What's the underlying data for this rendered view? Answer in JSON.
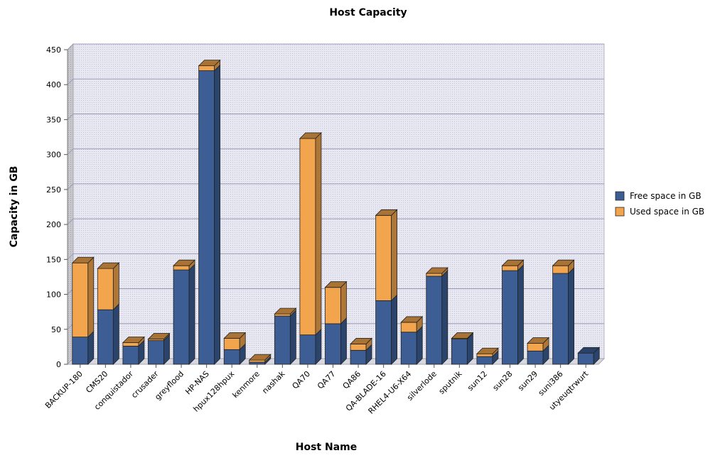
{
  "chart_data": {
    "type": "bar",
    "stacked": true,
    "three_d": true,
    "title": "Host Capacity",
    "xlabel": "Host Name",
    "ylabel": "Capacity in GB",
    "ylim": [
      0,
      450
    ],
    "yticks": [
      0,
      50,
      100,
      150,
      200,
      250,
      300,
      350,
      400,
      450
    ],
    "grid": true,
    "legend_position": "right",
    "categories": [
      "BACKUP-180",
      "CMS20",
      "conquistador",
      "crusader",
      "greyflood",
      "HP-NAS",
      "hpux128hpux",
      "kenmore",
      "nashak",
      "QA70",
      "QA77",
      "QA86",
      "QA-BLADE-16",
      "RHEL4-U6-X64",
      "silverlode",
      "sputnik",
      "sun12",
      "sun28",
      "sun29",
      "suni386",
      "utyeuqtrwurt"
    ],
    "series": [
      {
        "name": "Free space in GB",
        "color": "#3c5e94",
        "values": [
          39,
          78,
          26,
          34,
          135,
          420,
          21,
          3,
          69,
          42,
          58,
          20,
          91,
          46,
          126,
          36,
          11,
          134,
          19,
          130,
          16
        ]
      },
      {
        "name": "Used space in GB",
        "color": "#f2a54c",
        "values": [
          106,
          59,
          5,
          2,
          6,
          7,
          16,
          3,
          3,
          281,
          52,
          9,
          122,
          14,
          4,
          1,
          4,
          7,
          11,
          11,
          0
        ]
      }
    ]
  }
}
